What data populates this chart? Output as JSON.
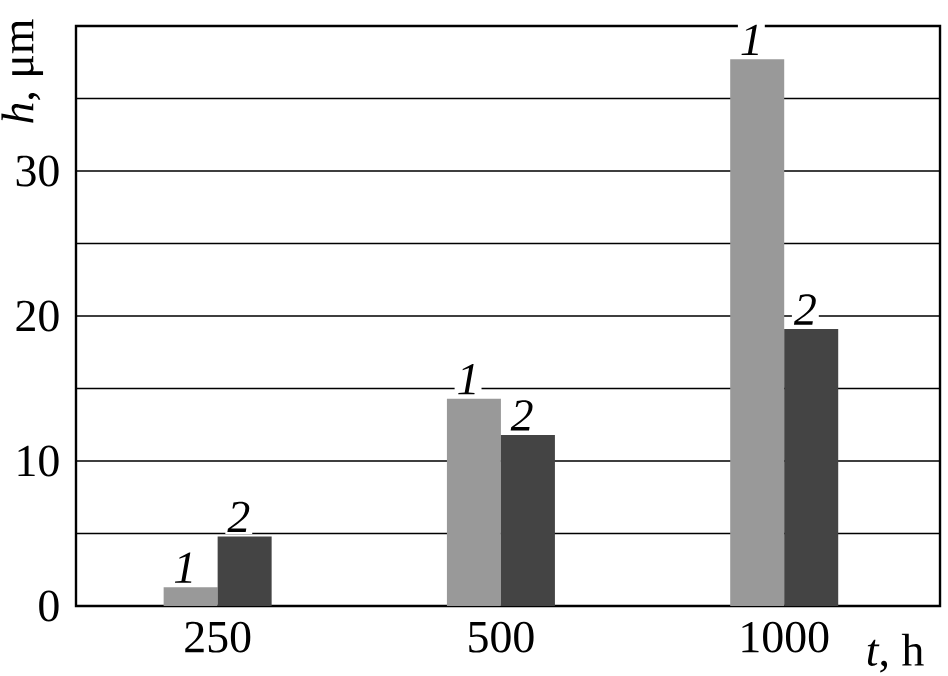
{
  "chart_data": {
    "type": "bar",
    "xlabel": "*t*, h",
    "ylabel": "*h*, μm",
    "categories": [
      "250",
      "500",
      "1000"
    ],
    "series": [
      {
        "name": "1",
        "color": "#999999",
        "values": [
          1.3,
          14.3,
          37.7
        ]
      },
      {
        "name": "2",
        "color": "#444444",
        "values": [
          4.8,
          11.8,
          19.1
        ]
      }
    ],
    "ylim": [
      0,
      40
    ],
    "yticks": [
      0,
      {
        "value": 5,
        "label": null
      },
      10,
      {
        "value": 15,
        "label": null
      },
      20,
      {
        "value": 25,
        "label": null
      },
      30,
      {
        "value": 35,
        "label": null
      },
      {
        "value": 40,
        "label": null
      }
    ],
    "grid": "y",
    "legend": false
  }
}
